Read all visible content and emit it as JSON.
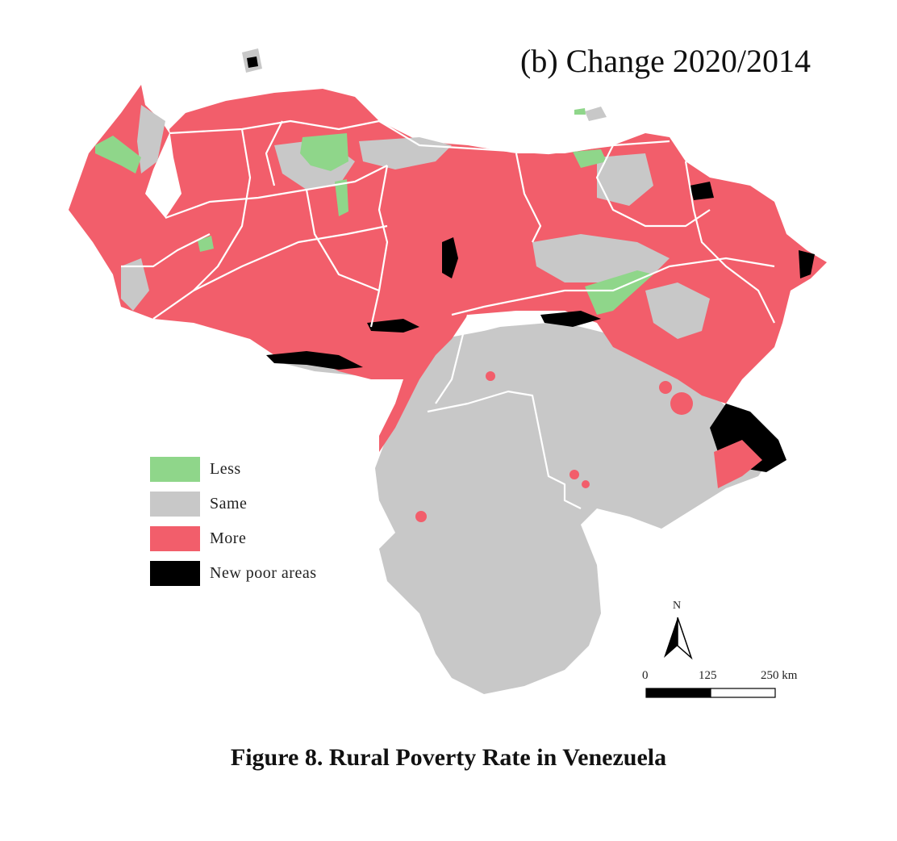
{
  "panel_title": "(b) Change 2020/2014",
  "caption": "Figure 8. Rural Poverty Rate in Venezuela",
  "legend": [
    {
      "label": "Less",
      "color": "#8fd68a"
    },
    {
      "label": "Same",
      "color": "#c8c8c8"
    },
    {
      "label": "More",
      "color": "#f25e6b"
    },
    {
      "label": "New poor areas",
      "color": "#000000"
    }
  ],
  "north_arrow": {
    "label": "N"
  },
  "scale_bar": {
    "ticks": [
      "0",
      "125",
      "250 km"
    ]
  },
  "map": {
    "country": "Venezuela",
    "colors": {
      "less": "#8fd68a",
      "same": "#c8c8c8",
      "more": "#f25e6b",
      "new_poor": "#000000",
      "borders": "#ffffff"
    }
  }
}
